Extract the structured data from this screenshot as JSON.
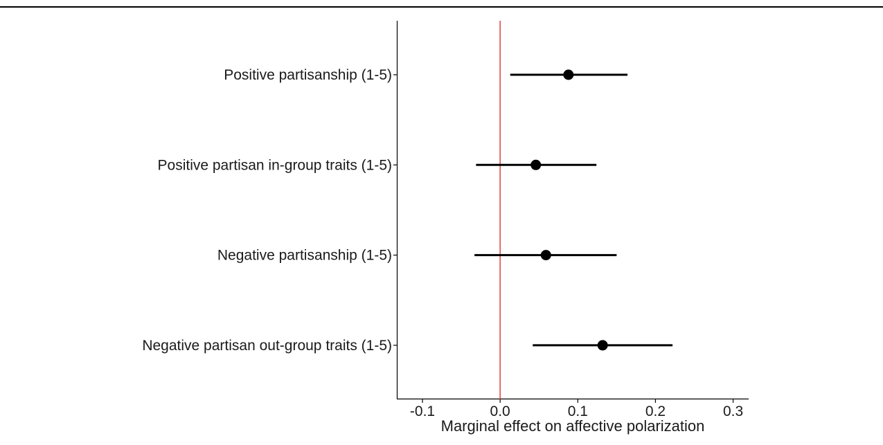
{
  "chart_data": {
    "type": "scatter",
    "style": "coefficient plot with horizontal confidence intervals",
    "title": "",
    "xlabel": "Marginal effect on affective polarization",
    "ylabel": "",
    "xlim": [
      -0.133,
      0.32
    ],
    "xticks": [
      -0.1,
      0.0,
      0.1,
      0.2,
      0.3
    ],
    "xtick_labels": [
      "-0.1",
      "0.0",
      "0.1",
      "0.2",
      "0.3"
    ],
    "reference_line": {
      "x": 0.0,
      "color": "#e0322b"
    },
    "grid": false,
    "legend": "none",
    "categories": [
      "Positive partisanship (1-5)",
      "Positive partisan in-group traits (1-5)",
      "Negative partisanship (1-5)",
      "Negative partisan out-group traits (1-5)"
    ],
    "estimates": [
      0.088,
      0.046,
      0.059,
      0.132
    ],
    "ci_low": [
      0.013,
      -0.031,
      -0.033,
      0.042
    ],
    "ci_high": [
      0.164,
      0.124,
      0.15,
      0.222
    ],
    "point_color": "#000000"
  }
}
